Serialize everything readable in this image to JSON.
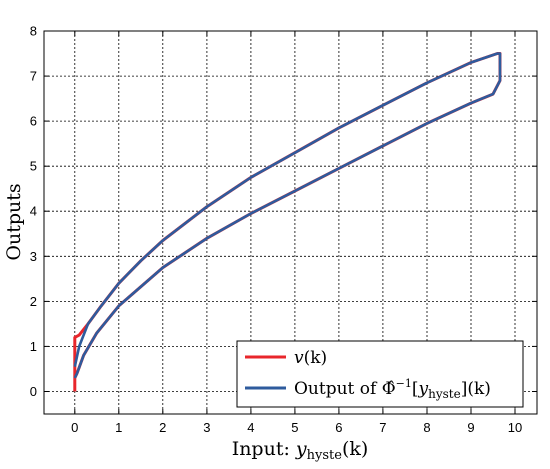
{
  "chart_data": {
    "type": "line",
    "xlabel_prefix": "Input: ",
    "xlabel_var": "y",
    "xlabel_sub": "hyste",
    "xlabel_arg": "(k)",
    "ylabel": "Outputs",
    "xlim": [
      -0.7,
      10.5
    ],
    "ylim": [
      -0.5,
      8
    ],
    "xticks": [
      0,
      1,
      2,
      3,
      4,
      5,
      6,
      7,
      8,
      9,
      10
    ],
    "yticks": [
      0,
      1,
      2,
      3,
      4,
      5,
      6,
      7,
      8
    ],
    "grid": true,
    "legend_position": "bottom-right",
    "series": [
      {
        "name": "v(k)",
        "legend_var": "v",
        "legend_arg": "(k)",
        "color": "#e8262b",
        "points": [
          [
            0,
            0
          ],
          [
            0,
            1.2
          ],
          [
            0.1,
            1.25
          ],
          [
            0.3,
            1.5
          ],
          [
            0.6,
            1.9
          ],
          [
            1.0,
            2.4
          ],
          [
            1.5,
            2.9
          ],
          [
            2.0,
            3.35
          ],
          [
            3.0,
            4.1
          ],
          [
            4.0,
            4.75
          ],
          [
            5.0,
            5.3
          ],
          [
            6.0,
            5.85
          ],
          [
            7.0,
            6.35
          ],
          [
            8.0,
            6.85
          ],
          [
            9.0,
            7.3
          ],
          [
            9.6,
            7.5
          ],
          [
            9.66,
            7.5
          ],
          [
            9.66,
            6.9
          ],
          [
            9.5,
            6.6
          ],
          [
            9.0,
            6.4
          ],
          [
            8.0,
            5.95
          ],
          [
            7.0,
            5.45
          ],
          [
            6.0,
            4.95
          ],
          [
            5.0,
            4.45
          ],
          [
            4.0,
            3.95
          ],
          [
            3.0,
            3.4
          ],
          [
            2.0,
            2.75
          ],
          [
            1.0,
            1.9
          ],
          [
            0.5,
            1.3
          ],
          [
            0.2,
            0.8
          ],
          [
            0.05,
            0.4
          ],
          [
            0,
            0.3
          ]
        ]
      },
      {
        "name": "Output of Φ̂⁻¹[y_hyste](k)",
        "legend_prefix": "Output of ",
        "legend_phi": "Φ̂",
        "legend_sup": "−1",
        "legend_bracket_open": "[",
        "legend_var": "y",
        "legend_sub": "hyste",
        "legend_bracket_close": "](k)",
        "color": "#2e5b9d",
        "points": [
          [
            0,
            0.55
          ],
          [
            0.1,
            1.0
          ],
          [
            0.3,
            1.5
          ],
          [
            0.6,
            1.9
          ],
          [
            1.0,
            2.4
          ],
          [
            1.5,
            2.9
          ],
          [
            2.0,
            3.35
          ],
          [
            3.0,
            4.1
          ],
          [
            4.0,
            4.75
          ],
          [
            5.0,
            5.3
          ],
          [
            6.0,
            5.85
          ],
          [
            7.0,
            6.35
          ],
          [
            8.0,
            6.85
          ],
          [
            9.0,
            7.3
          ],
          [
            9.6,
            7.5
          ],
          [
            9.66,
            7.5
          ],
          [
            9.66,
            6.9
          ],
          [
            9.5,
            6.6
          ],
          [
            9.0,
            6.4
          ],
          [
            8.0,
            5.95
          ],
          [
            7.0,
            5.45
          ],
          [
            6.0,
            4.95
          ],
          [
            5.0,
            4.45
          ],
          [
            4.0,
            3.95
          ],
          [
            3.0,
            3.4
          ],
          [
            2.0,
            2.75
          ],
          [
            1.0,
            1.9
          ],
          [
            0.5,
            1.3
          ],
          [
            0.2,
            0.8
          ],
          [
            0.05,
            0.4
          ],
          [
            0,
            0.3
          ]
        ]
      }
    ]
  }
}
